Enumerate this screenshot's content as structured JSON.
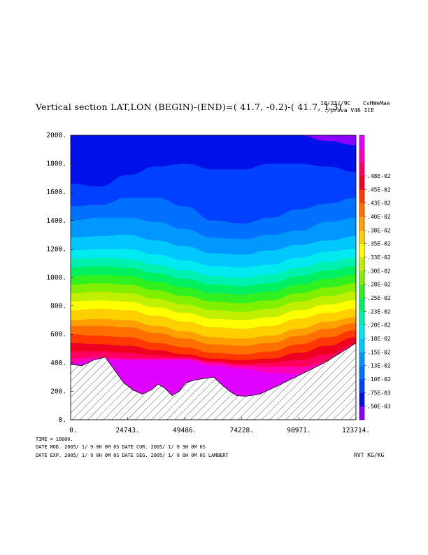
{
  "header": {
    "title": "Vertical section LAT,LON (BEGIN)-(END)=( 41.7, -0.2)-( 41.7,  1.3)",
    "date": "10/23//9C",
    "user": "CvHWeMae",
    "run": "../prova V46 ICE"
  },
  "footer": {
    "time": "TIME =    10800.",
    "line1": "DATE MOD. 2005/ 1/ 9   0H 0M 0S   DATE CUR. 2005/ 1/ 9   3H 0M 0S",
    "line2": "DATE EXP. 2005/ 1/ 9   0H 0M 0S   DATE SEG. 2005/ 1/ 9   0H 0M 0S   LAMBERT",
    "units": "RVT KG/KG"
  },
  "chart_data": {
    "type": "contour",
    "title": "Vertical section LAT,LON (BEGIN)-(END)=( 41.7, -0.2)-( 41.7,  1.3)",
    "xlabel": "",
    "ylabel": "",
    "xlim": [
      0,
      123714
    ],
    "ylim": [
      0,
      2000
    ],
    "x_ticks": [
      "0.",
      "24743.",
      "49486.",
      "74228.",
      "98971.",
      "123714."
    ],
    "y_ticks": [
      "0.",
      "200.",
      "400.",
      "600.",
      "800.",
      "1000.",
      "1200.",
      "1400.",
      "1600.",
      "1800.",
      "2000."
    ],
    "colorbar": {
      "labels": [
        ".50E-03",
        ".75E-03",
        ".10E-02",
        ".13E-02",
        ".15E-02",
        ".18E-02",
        ".20E-02",
        ".23E-02",
        ".25E-02",
        ".28E-02",
        ".30E-02",
        ".33E-02",
        ".35E-02",
        ".38E-02",
        ".40E-02",
        ".43E-02",
        ".45E-02",
        ".48E-02"
      ],
      "colors": [
        "#8a00ff",
        "#0010e8",
        "#0040ff",
        "#0070ff",
        "#0098ff",
        "#00c8ff",
        "#00eaf0",
        "#00f0b0",
        "#00f060",
        "#30f020",
        "#80f000",
        "#c0f000",
        "#ffff00",
        "#ffd000",
        "#ffa000",
        "#ff7000",
        "#ff3800",
        "#f00020",
        "#ff0060",
        "#ff00b8",
        "#e000ff"
      ]
    },
    "terrain": {
      "x": [
        0,
        5000,
        10000,
        15000,
        19000,
        23000,
        27000,
        31000,
        35000,
        38000,
        41000,
        44000,
        47000,
        50000,
        54000,
        58000,
        62000,
        66000,
        69000,
        72000,
        76000,
        82000,
        90000,
        100000,
        110000,
        118000,
        123714
      ],
      "height": [
        390,
        380,
        420,
        440,
        350,
        260,
        210,
        180,
        210,
        250,
        220,
        170,
        200,
        260,
        280,
        290,
        300,
        240,
        200,
        170,
        165,
        180,
        240,
        320,
        400,
        480,
        540
      ]
    },
    "contour_levels": {
      "level_index": [
        0,
        1,
        2,
        3,
        4,
        5,
        6,
        7,
        8,
        9,
        10,
        11,
        12,
        13,
        14,
        15,
        16,
        17,
        18,
        19,
        20
      ],
      "x": [
        0,
        12371,
        24743,
        37114,
        49486,
        61857,
        74228,
        86600,
        98971,
        111343,
        123714
      ],
      "boundary_heights": [
        [
          2000,
          2000,
          2000,
          2000,
          2000,
          2000,
          2000,
          2000,
          2000,
          1960,
          1930
        ],
        [
          1660,
          1640,
          1720,
          1780,
          1800,
          1760,
          1760,
          1800,
          1800,
          1780,
          1740
        ],
        [
          1500,
          1510,
          1560,
          1560,
          1500,
          1400,
          1380,
          1420,
          1480,
          1520,
          1560
        ],
        [
          1400,
          1420,
          1420,
          1390,
          1340,
          1280,
          1270,
          1300,
          1330,
          1390,
          1420
        ],
        [
          1280,
          1290,
          1300,
          1260,
          1220,
          1170,
          1160,
          1190,
          1230,
          1260,
          1290
        ],
        [
          1190,
          1200,
          1200,
          1160,
          1120,
          1080,
          1070,
          1090,
          1140,
          1180,
          1200
        ],
        [
          1130,
          1140,
          1130,
          1090,
          1050,
          1010,
          1000,
          1020,
          1070,
          1110,
          1140
        ],
        [
          1070,
          1080,
          1070,
          1030,
          990,
          950,
          940,
          960,
          1010,
          1050,
          1080
        ],
        [
          1010,
          1020,
          1010,
          970,
          930,
          890,
          880,
          900,
          950,
          990,
          1020
        ],
        [
          950,
          960,
          950,
          910,
          870,
          830,
          820,
          840,
          890,
          930,
          960
        ],
        [
          890,
          900,
          890,
          850,
          810,
          770,
          760,
          780,
          830,
          870,
          900
        ],
        [
          830,
          840,
          830,
          790,
          750,
          710,
          700,
          720,
          770,
          810,
          840
        ],
        [
          770,
          780,
          770,
          730,
          690,
          650,
          640,
          660,
          710,
          750,
          780
        ],
        [
          700,
          710,
          700,
          660,
          620,
          580,
          570,
          590,
          640,
          690,
          720
        ],
        [
          660,
          660,
          650,
          610,
          570,
          530,
          520,
          540,
          590,
          640,
          680
        ],
        [
          600,
          590,
          580,
          540,
          510,
          470,
          460,
          480,
          530,
          580,
          630
        ],
        [
          540,
          530,
          520,
          490,
          460,
          430,
          420,
          430,
          470,
          520,
          580
        ],
        [
          480,
          480,
          470,
          450,
          440,
          410,
          390,
          400,
          420,
          460,
          530
        ],
        [
          430,
          440,
          430,
          430,
          430,
          400,
          380,
          370,
          370,
          400,
          480
        ],
        [
          400,
          420,
          420,
          420,
          420,
          380,
          360,
          330,
          320,
          360,
          440
        ],
        [
          380,
          400,
          400,
          400,
          400,
          360,
          330,
          290,
          280,
          320,
          400
        ]
      ]
    }
  }
}
